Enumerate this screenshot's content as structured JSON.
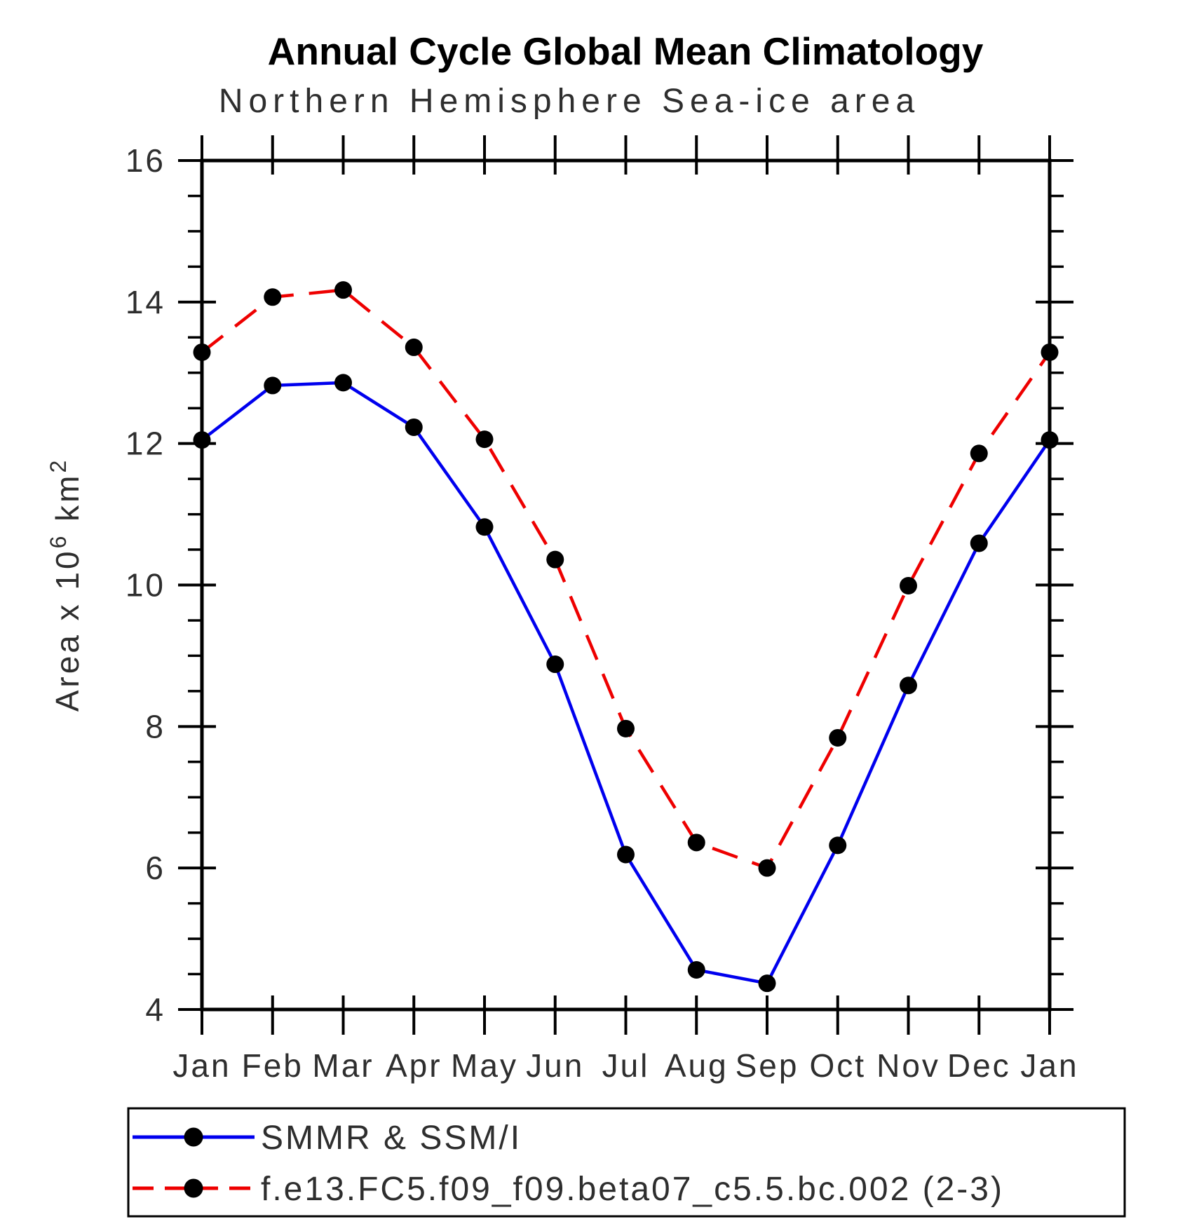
{
  "window": {
    "background_color": "#ffffff",
    "text_color": "#2e2e2e"
  },
  "header": {
    "title": "Annual Cycle Global Mean Climatology",
    "subtitle": "Northern Hemisphere Sea-ice area"
  },
  "chart_data": {
    "type": "line",
    "title": "Annual Cycle Global Mean Climatology",
    "subtitle": "Northern Hemisphere Sea-ice area",
    "xlabel": "",
    "ylabel": "Area x 10^6 km^2",
    "ylabel_parts": [
      {
        "t": "Area x 10",
        "sup": false
      },
      {
        "t": "6",
        "sup": true
      },
      {
        "t": " km",
        "sup": false
      },
      {
        "t": "2",
        "sup": true
      }
    ],
    "x_tick_labels": [
      "Jan",
      "Feb",
      "Mar",
      "Apr",
      "May",
      "Jun",
      "Jul",
      "Aug",
      "Sep",
      "Oct",
      "Nov",
      "Dec",
      "Jan"
    ],
    "ylim": [
      4,
      16
    ],
    "y_major_ticks": [
      4,
      6,
      8,
      10,
      12,
      14,
      16
    ],
    "y_minor_step": 0.5,
    "grid": false,
    "legend_position": "bottom",
    "axis_color": "#000000",
    "marker_color": "#000000",
    "series": [
      {
        "name": "SMMR & SSM/I",
        "color": "#0000ee",
        "style": "solid",
        "marker": "circle",
        "values": [
          12.05,
          12.82,
          12.86,
          12.23,
          10.82,
          8.88,
          6.19,
          4.56,
          4.37,
          6.32,
          8.58,
          10.59,
          12.05
        ]
      },
      {
        "name": "f.e13.FC5.f09_f09.beta07_c5.5.bc.002 (2-3)",
        "color": "#ee0000",
        "style": "dashed",
        "marker": "circle",
        "values": [
          13.29,
          14.07,
          14.17,
          13.36,
          12.06,
          10.36,
          7.97,
          6.36,
          6.0,
          7.84,
          9.99,
          11.86,
          13.29
        ]
      }
    ]
  }
}
